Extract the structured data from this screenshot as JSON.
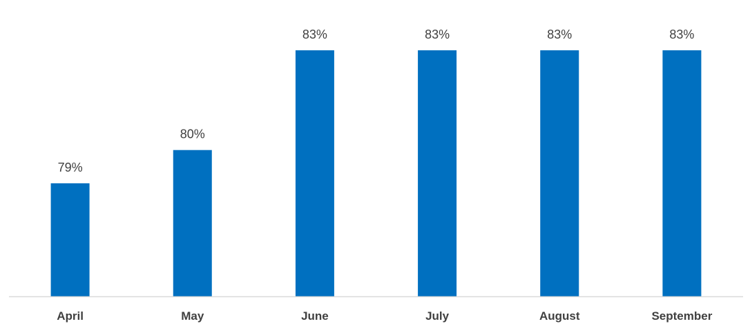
{
  "chart_data": {
    "type": "bar",
    "categories": [
      "April",
      "May",
      "June",
      "July",
      "August",
      "September"
    ],
    "values": [
      79,
      80,
      83,
      83,
      83,
      83
    ],
    "data_labels": [
      "79%",
      "80%",
      "83%",
      "83%",
      "83%",
      "83%"
    ],
    "title": "",
    "xlabel": "",
    "ylabel": "",
    "ylim": [
      75.6,
      83.6
    ],
    "grid": false,
    "legend": "none",
    "bar_color": "#0070C0",
    "axis_color": "#D9D9D9"
  }
}
